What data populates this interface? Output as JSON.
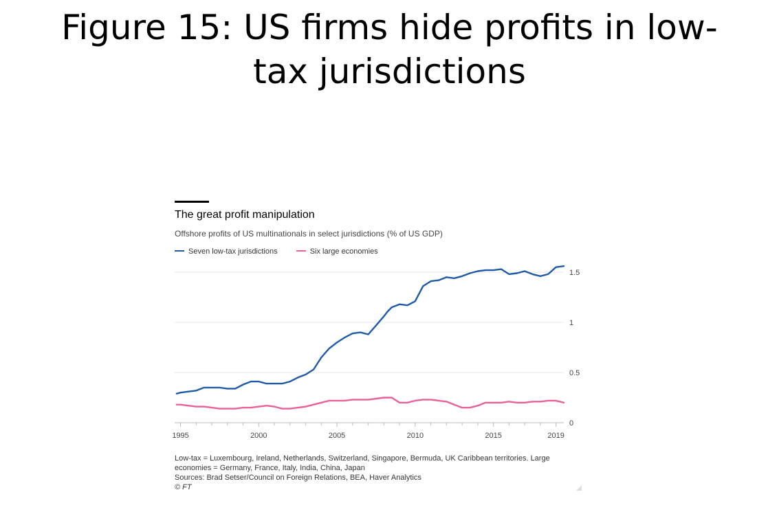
{
  "slide": {
    "title_line1": "Figure 15: US firms hide profits in low-",
    "title_line2": "tax jurisdictions"
  },
  "chart_data": {
    "type": "line",
    "title": "The great profit manipulation",
    "subtitle": "Offshore profits of US multinationals in select jurisdictions (% of US GDP)",
    "ylim": [
      0,
      1.5
    ],
    "yticks": [
      0,
      0.5,
      1,
      1.5
    ],
    "ytick_labels": [
      "0",
      "0.5",
      "1",
      "1.5"
    ],
    "xlim": [
      1994.8,
      2019.5
    ],
    "xticks": [
      1995,
      2000,
      2005,
      2010,
      2015,
      2019
    ],
    "xtick_labels": [
      "1995",
      "2000",
      "2005",
      "2010",
      "2015",
      "2019"
    ],
    "grid": "horizontal",
    "legend_position": "top-left",
    "series": [
      {
        "name": "Seven low-tax jurisdictions",
        "color": "#1f5aa6",
        "x": [
          1994.75,
          1995,
          1995.5,
          1996,
          1996.5,
          1996.75,
          1997,
          1997.5,
          1998,
          1998.5,
          1999,
          1999.5,
          1999.75,
          2000,
          2000.5,
          2001,
          2001.5,
          2002,
          2002.5,
          2003,
          2003.5,
          2004,
          2004.5,
          2005,
          2005.5,
          2006,
          2006.5,
          2007,
          2007.5,
          2008,
          2008.25,
          2008.5,
          2009,
          2009.5,
          2010,
          2010.5,
          2011,
          2011.5,
          2012,
          2012.5,
          2013,
          2013.5,
          2014,
          2014.5,
          2015,
          2015.5,
          2016,
          2016.5,
          2017,
          2017.5,
          2018,
          2018.5,
          2019,
          2019.5
        ],
        "y": [
          0.29,
          0.3,
          0.31,
          0.32,
          0.35,
          0.35,
          0.35,
          0.35,
          0.34,
          0.34,
          0.38,
          0.41,
          0.41,
          0.41,
          0.39,
          0.39,
          0.39,
          0.41,
          0.45,
          0.48,
          0.53,
          0.65,
          0.74,
          0.8,
          0.85,
          0.89,
          0.9,
          0.88,
          0.97,
          1.06,
          1.11,
          1.15,
          1.18,
          1.17,
          1.21,
          1.36,
          1.41,
          1.42,
          1.45,
          1.44,
          1.46,
          1.49,
          1.51,
          1.52,
          1.52,
          1.53,
          1.48,
          1.49,
          1.51,
          1.48,
          1.46,
          1.48,
          1.55,
          1.56
        ]
      },
      {
        "name": "Six large economies",
        "color": "#e8609a",
        "x": [
          1994.75,
          1995,
          1995.5,
          1996,
          1996.5,
          1997,
          1997.5,
          1998,
          1998.5,
          1999,
          1999.5,
          2000,
          2000.5,
          2001,
          2001.5,
          2002,
          2002.5,
          2003,
          2003.5,
          2004,
          2004.5,
          2005,
          2005.5,
          2006,
          2006.5,
          2007,
          2007.5,
          2008,
          2008.5,
          2009,
          2009.5,
          2010,
          2010.5,
          2011,
          2011.5,
          2012,
          2012.5,
          2013,
          2013.5,
          2014,
          2014.5,
          2015,
          2015.5,
          2016,
          2016.5,
          2017,
          2017.5,
          2018,
          2018.5,
          2019,
          2019.5
        ],
        "y": [
          0.18,
          0.18,
          0.17,
          0.16,
          0.16,
          0.15,
          0.14,
          0.14,
          0.14,
          0.15,
          0.15,
          0.16,
          0.17,
          0.16,
          0.14,
          0.14,
          0.15,
          0.16,
          0.18,
          0.2,
          0.22,
          0.22,
          0.22,
          0.23,
          0.23,
          0.23,
          0.24,
          0.25,
          0.25,
          0.2,
          0.2,
          0.22,
          0.23,
          0.23,
          0.22,
          0.21,
          0.18,
          0.15,
          0.15,
          0.17,
          0.2,
          0.2,
          0.2,
          0.21,
          0.2,
          0.2,
          0.21,
          0.21,
          0.22,
          0.22,
          0.2
        ]
      }
    ],
    "footnotes": [
      "Low-tax = Luxembourg, Ireland, Netherlands, Switzerland, Singapore, Bermuda, UK Caribbean territories. Large economies = Germany, France, Italy, India, China, Japan",
      "Sources: Brad Setser/Council on Foreign Relations, BEA, Haver Analytics",
      "© FT"
    ]
  }
}
